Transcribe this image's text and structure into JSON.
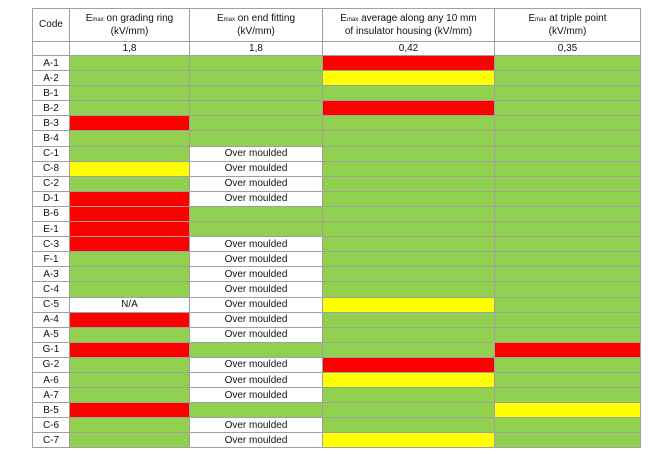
{
  "colors": {
    "green": "#92d050",
    "red": "#ff0000",
    "yellow": "#ffff00",
    "white": "#ffffff"
  },
  "header": {
    "code": "Code",
    "columns": [
      {
        "e": "E",
        "sub": "max",
        "label": " on grading ring",
        "unit": "(kV/mm)"
      },
      {
        "e": "E",
        "sub": "max",
        "label": " on end fitting",
        "unit": "(kV/mm)"
      },
      {
        "e": "E",
        "sub": "max",
        "label": " average along any 10 mm",
        "unit": "of insulator housing (kV/mm)"
      },
      {
        "e": "E",
        "sub": "max",
        "label": " at triple point",
        "unit": "(kV/mm)"
      }
    ],
    "thresholds": [
      "1,8",
      "1,8",
      "0,42",
      "0,35"
    ]
  },
  "rows": [
    {
      "code": "A-1",
      "cells": [
        "green",
        "green",
        "red",
        "green"
      ]
    },
    {
      "code": "A-2",
      "cells": [
        "green",
        "green",
        "yellow",
        "green"
      ]
    },
    {
      "code": "B-1",
      "cells": [
        "green",
        "green",
        "green",
        "green"
      ]
    },
    {
      "code": "B-2",
      "cells": [
        "green",
        "green",
        "red",
        "green"
      ]
    },
    {
      "code": "B-3",
      "cells": [
        "red",
        "green",
        "green",
        "green"
      ]
    },
    {
      "code": "B-4",
      "cells": [
        "green",
        "green",
        "green",
        "green"
      ]
    },
    {
      "code": "C-1",
      "cells": [
        "green",
        "Over moulded",
        "green",
        "green"
      ]
    },
    {
      "code": "C-8",
      "cells": [
        "yellow",
        "Over moulded",
        "green",
        "green"
      ]
    },
    {
      "code": "C-2",
      "cells": [
        "green",
        "Over moulded",
        "green",
        "green"
      ]
    },
    {
      "code": "D-1",
      "cells": [
        "red",
        "Over moulded",
        "green",
        "green"
      ]
    },
    {
      "code": "B-6",
      "cells": [
        "red",
        "green",
        "green",
        "green"
      ]
    },
    {
      "code": "E-1",
      "cells": [
        "red",
        "green",
        "green",
        "green"
      ]
    },
    {
      "code": "C-3",
      "cells": [
        "red",
        "Over moulded",
        "green",
        "green"
      ]
    },
    {
      "code": "F-1",
      "cells": [
        "green",
        "Over moulded",
        "green",
        "green"
      ]
    },
    {
      "code": "A-3",
      "cells": [
        "green",
        "Over moulded",
        "green",
        "green"
      ]
    },
    {
      "code": "C-4",
      "cells": [
        "green",
        "Over moulded",
        "green",
        "green"
      ]
    },
    {
      "code": "C-5",
      "cells": [
        "N/A",
        "Over moulded",
        "yellow",
        "green"
      ]
    },
    {
      "code": "A-4",
      "cells": [
        "red",
        "Over moulded",
        "green",
        "green"
      ]
    },
    {
      "code": "A-5",
      "cells": [
        "green",
        "Over moulded",
        "green",
        "green"
      ]
    },
    {
      "code": "G-1",
      "cells": [
        "red",
        "green",
        "green",
        "red"
      ]
    },
    {
      "code": "G-2",
      "cells": [
        "green",
        "Over moulded",
        "red",
        "green"
      ]
    },
    {
      "code": "A-6",
      "cells": [
        "green",
        "Over moulded",
        "yellow",
        "green"
      ]
    },
    {
      "code": "A-7",
      "cells": [
        "green",
        "Over moulded",
        "green",
        "green"
      ]
    },
    {
      "code": "B-5",
      "cells": [
        "red",
        "green",
        "green",
        "yellow"
      ]
    },
    {
      "code": "C-6",
      "cells": [
        "green",
        "Over moulded",
        "green",
        "green"
      ]
    },
    {
      "code": "C-7",
      "cells": [
        "green",
        "Over moulded",
        "yellow",
        "green"
      ]
    }
  ]
}
